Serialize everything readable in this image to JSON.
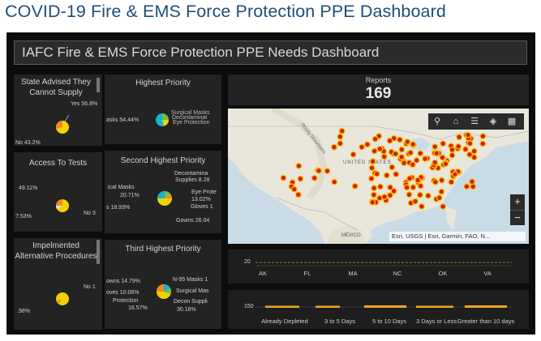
{
  "page_title": "COVID-19 Fire & EMS Force Protection PPE Dashboard",
  "dashboard": {
    "header": "IAFC Fire & EMS Force Protection PPE Needs Dashboard",
    "reports": {
      "label": "Reports",
      "value": "169"
    },
    "map_attribution": "Esri, USGS | Esri, Garmin, FAO, N...",
    "map_labels": {
      "country": "UNITED STATES",
      "mexico": "MÉXICO",
      "mountains": "Rocky Mountains"
    },
    "map_tools": [
      "search-icon",
      "home-icon",
      "list-icon",
      "layers-icon",
      "qr-icon"
    ],
    "zoom": {
      "in": "+",
      "out": "−"
    }
  },
  "panels": {
    "state_advised": {
      "title": "State Advised They Cannot Supply",
      "labels": [
        "Yes 56.8%",
        "No 43.2%"
      ]
    },
    "access_tests": {
      "title": "Access To Tests",
      "labels": [
        "49.11%",
        "No 3",
        "?.53%"
      ]
    },
    "alt_procedures": {
      "title": "Impelmented Alternative Procedures",
      "labels": [
        "No 1",
        ".98%"
      ]
    },
    "highest_priority": {
      "title": "Highest Priority",
      "labels": [
        "asks 54.44%",
        "Surgical Masks",
        "Decontaminat",
        "Eye Protection"
      ]
    },
    "second_priority": {
      "title": "Second Highest Priority",
      "labels": [
        "Decontamina",
        "Supplies 8.28",
        "ical Masks",
        "20.71%",
        "Eye Prote",
        "13.02%",
        "Gloves 1",
        "s 18.93%",
        "Gowns 26.04"
      ]
    },
    "third_priority": {
      "title": "Third Highest Priority",
      "labels": [
        "owns 14.79%",
        "N-95 Masks 1",
        "Surgical Mas",
        "oves 10.06%",
        "Protection",
        "16.57%",
        "Decon Suppli",
        "30.18%"
      ]
    }
  },
  "bars": {
    "states": {
      "y_tick": "20",
      "categories": [
        "AK",
        "FL",
        "MA",
        "NC",
        "OK",
        "VA"
      ]
    },
    "depletion": {
      "y_tick": "150",
      "categories": [
        "Already Depleted",
        "3 to 5 Days",
        "5 to 10 Days",
        "3 Days or Less",
        "Greater than 10 days"
      ]
    }
  },
  "colors": {
    "title_blue": "#1f4e79",
    "pie_yellow": "#f2d200",
    "pie_orange": "#f08c1e",
    "pie_cyan": "#15b5c9",
    "pie_green": "#6cc04a",
    "marker_red": "#d61c1c",
    "marker_ring": "#f5c400",
    "bar_orange": "#f0a424"
  }
}
